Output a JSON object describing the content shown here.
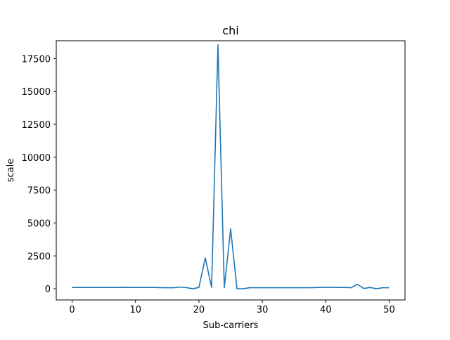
{
  "chart_data": {
    "type": "line",
    "title": "chi",
    "xlabel": "Sub-carriers",
    "ylabel": "scale",
    "xlim": [
      -2.5,
      52.5
    ],
    "ylim": [
      -850,
      18850
    ],
    "xticks": [
      0,
      10,
      20,
      30,
      40,
      50
    ],
    "yticks": [
      0,
      2500,
      5000,
      7500,
      10000,
      12500,
      15000,
      17500
    ],
    "grid": false,
    "color": "#1f77b4",
    "series": [
      {
        "x": [
          0,
          1,
          2,
          3,
          4,
          5,
          6,
          7,
          8,
          9,
          10,
          11,
          12,
          13,
          14,
          15,
          16,
          17,
          18,
          19,
          20,
          21,
          22,
          23,
          24,
          25,
          26,
          27,
          28,
          29,
          30,
          31,
          32,
          33,
          34,
          35,
          36,
          37,
          38,
          39,
          40,
          41,
          42,
          43,
          44,
          45,
          46,
          47,
          48,
          49,
          50
        ],
        "values": [
          100,
          100,
          100,
          100,
          100,
          100,
          100,
          100,
          110,
          100,
          100,
          100,
          100,
          100,
          90,
          80,
          80,
          130,
          90,
          0,
          100,
          2350,
          100,
          18550,
          100,
          4550,
          0,
          0,
          80,
          80,
          80,
          80,
          80,
          80,
          80,
          80,
          80,
          80,
          90,
          100,
          110,
          110,
          100,
          100,
          80,
          340,
          20,
          100,
          0,
          80,
          80
        ]
      }
    ]
  }
}
